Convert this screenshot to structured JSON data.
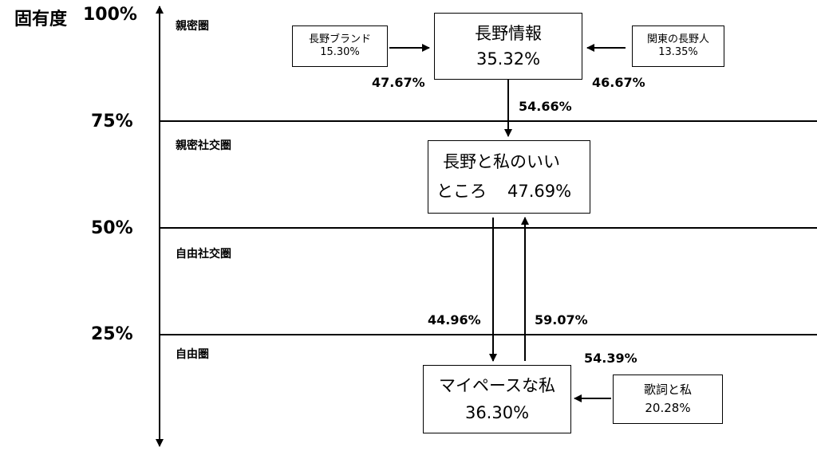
{
  "axis": {
    "title": "固有度",
    "ticks": [
      "100%",
      "75%",
      "50%",
      "25%"
    ]
  },
  "zones": [
    "親密圏",
    "親密社交圏",
    "自由社交圏",
    "自由圏"
  ],
  "nodes": {
    "nagano_info": {
      "name": "長野情報",
      "value": "35.32%"
    },
    "nagano_brand": {
      "name": "長野ブランド",
      "value": "15.30%"
    },
    "kanto": {
      "name": "関東の長野人",
      "value": "13.35%"
    },
    "nagano_watashi": {
      "name": "長野と私のいい",
      "name2": "ところ",
      "value": "47.69%"
    },
    "my_pace": {
      "name": "マイペースな私",
      "value": "36.30%"
    },
    "kashi": {
      "name": "歌詞と私",
      "value": "20.28%"
    }
  },
  "edges": {
    "brand_to_info": "47.67%",
    "kanto_to_info": "46.67%",
    "info_to_watashi": "54.66%",
    "watashi_to_mypace": "44.96%",
    "mypace_to_watashi": "59.07%",
    "kashi_to_mypace": "54.39%"
  }
}
